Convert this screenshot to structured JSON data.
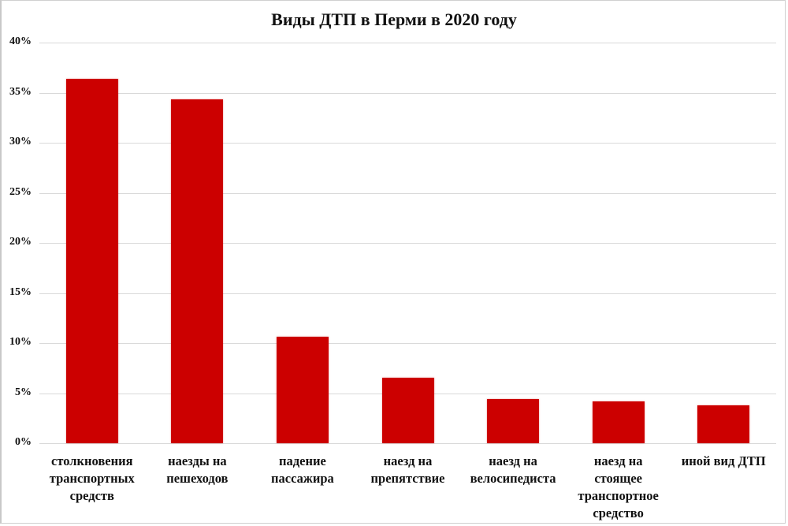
{
  "chart_data": {
    "type": "bar",
    "title": "Виды ДТП в Перми в 2020 году",
    "xlabel": "",
    "ylabel": "",
    "ylim": [
      0,
      40
    ],
    "yticks": [
      "0%",
      "5%",
      "10%",
      "15%",
      "20%",
      "25%",
      "30%",
      "35%",
      "40%"
    ],
    "grid": true,
    "legend": null,
    "bar_color": "#cc0000",
    "categories": [
      "столкновения транспортных средств",
      "наезды на пешеходов",
      "падение пассажира",
      "наезд на препятствие",
      "наезд на велосипедиста",
      "наезд на стоящее транспортное средство",
      "иной вид ДТП"
    ],
    "category_labels_wrapped": [
      "столкновения\nтранспортных\nсредств",
      "наезды на\nпешеходов",
      "падение\nпассажира",
      "наезд на\nпрепятствие",
      "наезд на\nвелосипедиста",
      "наезд на\nстоящее\nтранспортное\nсредство",
      "иной вид ДТП"
    ],
    "values": [
      36.4,
      34.3,
      10.6,
      6.5,
      4.4,
      4.2,
      3.8
    ],
    "unit": "%"
  }
}
